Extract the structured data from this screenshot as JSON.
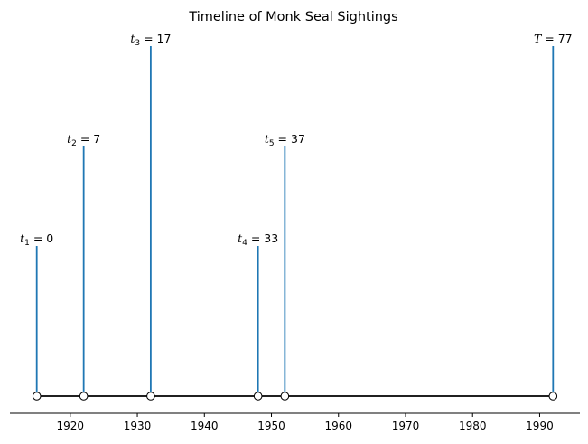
{
  "chart_data": {
    "type": "timeline",
    "title": "Timeline of Monk Seal Sightings",
    "xlabel": "",
    "ylabel": "",
    "xlim": [
      1911,
      1996
    ],
    "x_ticks": [
      1920,
      1930,
      1940,
      1950,
      1960,
      1970,
      1980,
      1990
    ],
    "events": [
      {
        "x": 1915,
        "level": 1,
        "var": "t",
        "sub": "1",
        "value": "0"
      },
      {
        "x": 1922,
        "level": 2,
        "var": "t",
        "sub": "2",
        "value": "7"
      },
      {
        "x": 1932,
        "level": 3,
        "var": "t",
        "sub": "3",
        "value": "17"
      },
      {
        "x": 1948,
        "level": 1,
        "var": "t",
        "sub": "4",
        "value": "33"
      },
      {
        "x": 1952,
        "level": 2,
        "var": "t",
        "sub": "5",
        "value": "37"
      },
      {
        "x": 1992,
        "level": 3,
        "var": "T",
        "sub": "",
        "value": "77"
      }
    ],
    "colors": {
      "stem": "#1f77b4",
      "baseline": "#000000",
      "marker_fill": "#ffffff",
      "marker_edge": "#000000"
    }
  }
}
